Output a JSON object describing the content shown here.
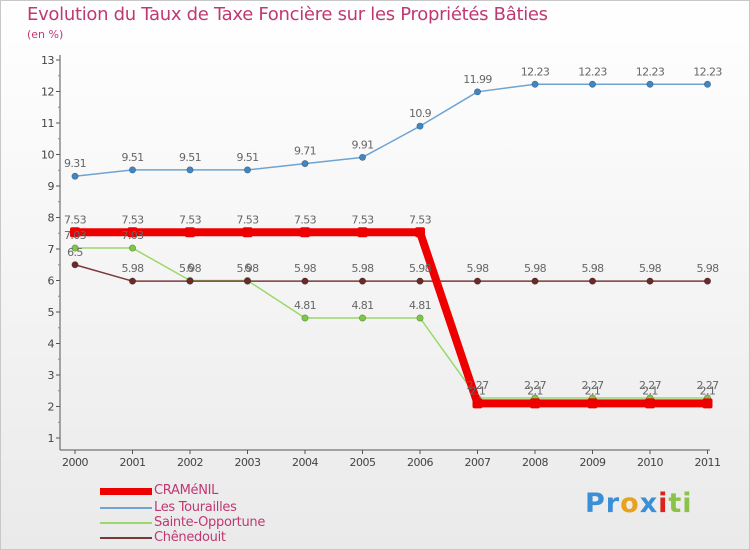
{
  "title": "Evolution du Taux de Taxe Foncière sur les Propriétés Bâties",
  "subtitle": "(en %)",
  "logo": {
    "text": "Proxiti",
    "letter_colors": [
      "#3a8fd8",
      "#3a8fd8",
      "#e8a21c",
      "#3a8fd8",
      "#d8261c",
      "#8bc34a",
      "#8bc34a"
    ]
  },
  "chart_data": {
    "type": "line",
    "title": "Evolution du Taux de Taxe Foncière sur les Propriétés Bâties",
    "ylabel": "(en %)",
    "xlabel": "",
    "ylim": [
      1,
      13
    ],
    "yticks": [
      1,
      2,
      3,
      4,
      5,
      6,
      7,
      8,
      9,
      10,
      11,
      12,
      13
    ],
    "categories": [
      "2000",
      "2001",
      "2002",
      "2003",
      "2004",
      "2005",
      "2006",
      "2007",
      "2008",
      "2009",
      "2010",
      "2011"
    ],
    "grid": false,
    "legend_position": "bottom-left",
    "series": [
      {
        "name": "Les Tourailles",
        "color": "#6fa3d1",
        "marker_color": "#3f86c4",
        "values": [
          9.31,
          9.51,
          9.51,
          9.51,
          9.71,
          9.91,
          10.9,
          11.99,
          12.23,
          12.23,
          12.23,
          12.23
        ],
        "labels": [
          "9.31",
          "9.51",
          "9.51",
          "9.51",
          "9.71",
          "9.91",
          "10.9",
          "11.99",
          "12.23",
          "12.23",
          "12.23",
          "12.23"
        ]
      },
      {
        "name": "Sainte-Opportune",
        "color": "#9bd86a",
        "marker_color": "#7cc845",
        "values": [
          7.03,
          7.03,
          6.0,
          6.0,
          4.81,
          4.81,
          4.81,
          2.27,
          2.27,
          2.27,
          2.27,
          2.27
        ],
        "labels": [
          "7.03",
          "7.03",
          "6",
          "6",
          "4.81",
          "4.81",
          "4.81",
          "2.27",
          "2.27",
          "2.27",
          "2.27",
          "2.27"
        ]
      },
      {
        "name": "Chênedouit",
        "color": "#7a3a3a",
        "marker_color": "#6b2a2a",
        "values": [
          6.5,
          5.98,
          5.98,
          5.98,
          5.98,
          5.98,
          5.98,
          5.98,
          5.98,
          5.98,
          5.98,
          5.98
        ],
        "labels": [
          "6.5",
          "5.98",
          "5.98",
          "5.98",
          "5.98",
          "5.98",
          "5.98",
          "5.98",
          "5.98",
          "5.98",
          "5.98",
          "5.98"
        ]
      },
      {
        "name": "CRAMéNIL",
        "color": "#ee0000",
        "marker_color": "#ee0000",
        "values": [
          7.53,
          7.53,
          7.53,
          7.53,
          7.53,
          7.53,
          7.53,
          2.1,
          2.1,
          2.1,
          2.1,
          2.1
        ],
        "labels": [
          "7.53",
          "7.53",
          "7.53",
          "7.53",
          "7.53",
          "7.53",
          "7.53",
          "2.1",
          "2.1",
          "2.1",
          "2.1",
          "2.1"
        ]
      }
    ],
    "legend": [
      "CRAMéNIL",
      "Les Tourailles",
      "Sainte-Opportune",
      "Chênedouit"
    ]
  }
}
